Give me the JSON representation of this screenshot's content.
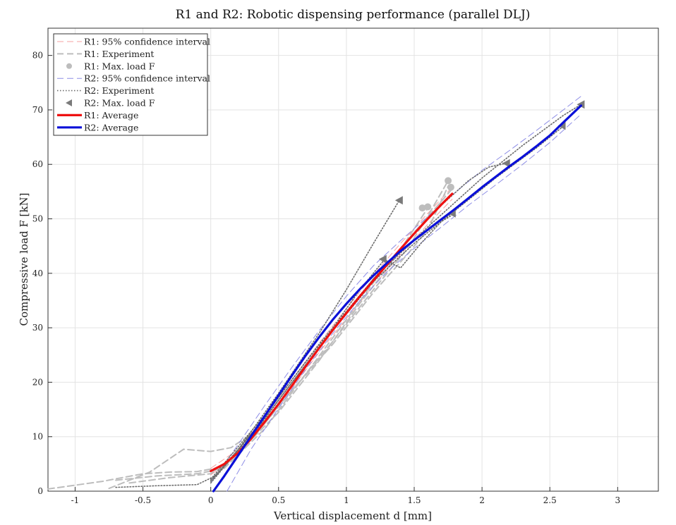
{
  "chart_data": {
    "type": "line",
    "title": "R1 and R2: Robotic dispensing performance (parallel DLJ)",
    "xlabel": "Vertical displacement d [mm]",
    "ylabel": "Compressive load F [kN]",
    "xlim": [
      -1.2,
      3.3
    ],
    "ylim": [
      0,
      85
    ],
    "xticks": [
      -1,
      -0.5,
      0,
      0.5,
      1,
      1.5,
      2,
      2.5,
      3
    ],
    "xtick_labels": [
      "-1",
      "-0.5",
      "0",
      "0.5",
      "1",
      "1.5",
      "2",
      "2.5",
      "3"
    ],
    "yticks": [
      0,
      10,
      20,
      30,
      40,
      50,
      60,
      70,
      80
    ],
    "ytick_labels": [
      "0",
      "10",
      "20",
      "30",
      "40",
      "50",
      "60",
      "70",
      "80"
    ],
    "grid": true,
    "legend_position": "top-left",
    "colors": {
      "r1_avg": "#ee1111",
      "r2_avg": "#0b10d8",
      "r1_ci": "#f4a0a0",
      "r2_ci": "#8e8ee6",
      "experiment": "#bdbdbd",
      "r2_experiment": "#6b6b6b",
      "r2_marker": "#7a7a7a"
    },
    "series": [
      {
        "key": "r1_ci",
        "name": "R1: 95% confidence interval",
        "style": "dashed",
        "lines": [
          [
            [
              0,
              4.2
            ],
            [
              0.2,
              7.6
            ],
            [
              0.4,
              13.8
            ],
            [
              0.6,
              20.5
            ],
            [
              0.8,
              27.2
            ],
            [
              1.0,
              33.5
            ],
            [
              1.2,
              39.7
            ],
            [
              1.4,
              45.5
            ],
            [
              1.6,
              51.0
            ],
            [
              1.78,
              55.8
            ]
          ],
          [
            [
              0,
              3.0
            ],
            [
              0.2,
              6.5
            ],
            [
              0.4,
              12.4
            ],
            [
              0.6,
              18.9
            ],
            [
              0.8,
              25.5
            ],
            [
              1.0,
              31.7
            ],
            [
              1.2,
              37.7
            ],
            [
              1.4,
              43.5
            ],
            [
              1.6,
              49.0
            ],
            [
              1.78,
              53.6
            ]
          ]
        ]
      },
      {
        "key": "experiment",
        "name": "R1: Experiment",
        "style": "dashed",
        "lines": [
          [
            [
              -1.2,
              0.4
            ],
            [
              -0.8,
              1.8
            ],
            [
              -0.5,
              3.2
            ],
            [
              -0.3,
              3.5
            ],
            [
              -0.1,
              3.6
            ],
            [
              0.1,
              4.5
            ],
            [
              0.3,
              9.5
            ],
            [
              0.6,
              18.5
            ],
            [
              0.9,
              27.5
            ],
            [
              1.2,
              37.0
            ],
            [
              1.45,
              44.5
            ],
            [
              1.6,
              50.5
            ],
            [
              1.75,
              57.0
            ]
          ],
          [
            [
              -0.75,
              0.5
            ],
            [
              -0.45,
              3.5
            ],
            [
              -0.2,
              7.7
            ],
            [
              0.0,
              7.3
            ],
            [
              0.15,
              8.0
            ],
            [
              0.3,
              10.5
            ],
            [
              0.6,
              18.5
            ],
            [
              0.9,
              27.0
            ],
            [
              1.2,
              36.5
            ],
            [
              1.45,
              43.5
            ],
            [
              1.6,
              48.0
            ],
            [
              1.75,
              56.0
            ]
          ],
          [
            [
              -0.6,
              1.5
            ],
            [
              -0.3,
              2.5
            ],
            [
              0.0,
              3.2
            ],
            [
              0.2,
              7.0
            ],
            [
              0.5,
              14.5
            ],
            [
              0.8,
              24.0
            ],
            [
              1.1,
              34.5
            ],
            [
              1.35,
              42.5
            ],
            [
              1.6,
              52.0
            ]
          ],
          [
            [
              -0.7,
              2.0
            ],
            [
              -0.4,
              2.8
            ],
            [
              -0.1,
              3.2
            ],
            [
              0.1,
              4.2
            ],
            [
              0.4,
              11.5
            ],
            [
              0.7,
              21.5
            ],
            [
              1.0,
              31.5
            ],
            [
              1.25,
              40.0
            ],
            [
              1.5,
              47.5
            ],
            [
              1.78,
              55.5
            ]
          ]
        ]
      },
      {
        "key": "r1_max",
        "name": "R1: Max. load F",
        "style": "marker-circle",
        "points": [
          [
            1.56,
            52.0
          ],
          [
            1.6,
            52.2
          ],
          [
            1.75,
            57.0
          ],
          [
            1.77,
            55.8
          ]
        ]
      },
      {
        "key": "r2_ci",
        "name": "R2: 95% confidence interval",
        "style": "dashed",
        "lines": [
          [
            [
              0.0,
              1.5
            ],
            [
              0.2,
              8.5
            ],
            [
              0.4,
              15.8
            ],
            [
              0.6,
              22.8
            ],
            [
              0.8,
              29.5
            ],
            [
              1.0,
              35.8
            ],
            [
              1.2,
              41.4
            ],
            [
              1.4,
              46.0
            ],
            [
              1.6,
              50.4
            ],
            [
              1.8,
              54.8
            ],
            [
              2.0,
              58.9
            ],
            [
              2.2,
              62.5
            ],
            [
              2.4,
              66.2
            ],
            [
              2.6,
              70.0
            ],
            [
              2.73,
              72.5
            ]
          ],
          [
            [
              0.12,
              0.0
            ],
            [
              0.3,
              7.8
            ],
            [
              0.5,
              15.2
            ],
            [
              0.7,
              22.4
            ],
            [
              0.9,
              29.0
            ],
            [
              1.1,
              35.0
            ],
            [
              1.3,
              40.3
            ],
            [
              1.5,
              44.6
            ],
            [
              1.7,
              48.5
            ],
            [
              1.9,
              52.5
            ],
            [
              2.1,
              56.2
            ],
            [
              2.3,
              60.0
            ],
            [
              2.5,
              64.0
            ],
            [
              2.73,
              69.2
            ]
          ]
        ]
      },
      {
        "key": "r2_experiment",
        "name": "R2: Experiment",
        "style": "dotted",
        "lines": [
          [
            [
              -0.7,
              0.7
            ],
            [
              -0.4,
              1.0
            ],
            [
              -0.1,
              1.2
            ],
            [
              0.05,
              3.0
            ],
            [
              0.2,
              7.5
            ],
            [
              0.5,
              18.0
            ],
            [
              0.8,
              29.0
            ],
            [
              1.0,
              37.0
            ],
            [
              1.2,
              45.5
            ],
            [
              1.39,
              53.4
            ]
          ],
          [
            [
              0.0,
              1.5
            ],
            [
              0.3,
              10.5
            ],
            [
              0.6,
              20.5
            ],
            [
              0.9,
              30.0
            ],
            [
              1.1,
              37.0
            ],
            [
              1.28,
              42.5
            ],
            [
              1.4,
              41.0
            ],
            [
              1.55,
              45.5
            ],
            [
              1.7,
              49.5
            ],
            [
              1.8,
              51.0
            ]
          ],
          [
            [
              0.0,
              2.0
            ],
            [
              0.3,
              10.0
            ],
            [
              0.6,
              20.0
            ],
            [
              0.9,
              29.5
            ],
            [
              1.2,
              39.0
            ],
            [
              1.45,
              46.0
            ],
            [
              1.7,
              52.5
            ],
            [
              1.9,
              57.0
            ],
            [
              2.05,
              59.5
            ],
            [
              2.18,
              60.2
            ]
          ],
          [
            [
              0.0,
              1.8
            ],
            [
              0.4,
              13.5
            ],
            [
              0.8,
              26.5
            ],
            [
              1.2,
              38.5
            ],
            [
              1.5,
              45.5
            ],
            [
              1.8,
              51.5
            ],
            [
              2.1,
              57.5
            ],
            [
              2.4,
              63.0
            ],
            [
              2.6,
              67.0
            ]
          ],
          [
            [
              0.0,
              2.2
            ],
            [
              0.4,
              14.0
            ],
            [
              0.8,
              27.0
            ],
            [
              1.2,
              39.0
            ],
            [
              1.6,
              48.5
            ],
            [
              2.0,
              57.5
            ],
            [
              2.3,
              63.5
            ],
            [
              2.6,
              69.0
            ],
            [
              2.73,
              71.0
            ]
          ]
        ]
      },
      {
        "key": "r2_max",
        "name": "R2: Max. load F",
        "style": "marker-triangle-left",
        "points": [
          [
            1.39,
            53.4
          ],
          [
            1.27,
            42.6
          ],
          [
            1.78,
            51.0
          ],
          [
            2.18,
            60.2
          ],
          [
            2.59,
            67.1
          ],
          [
            2.73,
            71.0
          ]
        ]
      },
      {
        "key": "r1_avg",
        "name": "R1: Average",
        "style": "solid",
        "lines": [
          [
            [
              0.0,
              3.7
            ],
            [
              0.1,
              5.0
            ],
            [
              0.2,
              7.0
            ],
            [
              0.3,
              9.7
            ],
            [
              0.4,
              12.8
            ],
            [
              0.5,
              16.0
            ],
            [
              0.6,
              19.4
            ],
            [
              0.7,
              22.9
            ],
            [
              0.8,
              26.3
            ],
            [
              0.9,
              29.6
            ],
            [
              1.0,
              32.7
            ],
            [
              1.1,
              35.8
            ],
            [
              1.2,
              38.7
            ],
            [
              1.3,
              41.6
            ],
            [
              1.4,
              44.5
            ],
            [
              1.5,
              47.3
            ],
            [
              1.6,
              50.0
            ],
            [
              1.7,
              52.6
            ],
            [
              1.78,
              54.6
            ]
          ]
        ]
      },
      {
        "key": "r2_avg",
        "name": "R2: Average",
        "style": "solid",
        "lines": [
          [
            [
              0.02,
              0.0
            ],
            [
              0.1,
              2.8
            ],
            [
              0.2,
              6.5
            ],
            [
              0.3,
              10.2
            ],
            [
              0.4,
              13.9
            ],
            [
              0.5,
              17.6
            ],
            [
              0.6,
              21.3
            ],
            [
              0.7,
              24.9
            ],
            [
              0.8,
              28.3
            ],
            [
              0.9,
              31.5
            ],
            [
              1.0,
              34.4
            ],
            [
              1.1,
              37.1
            ],
            [
              1.2,
              39.6
            ],
            [
              1.3,
              41.9
            ],
            [
              1.4,
              44.1
            ],
            [
              1.5,
              46.1
            ],
            [
              1.6,
              48.0
            ],
            [
              1.7,
              49.9
            ],
            [
              1.8,
              51.8
            ],
            [
              1.9,
              53.8
            ],
            [
              2.0,
              55.8
            ],
            [
              2.1,
              57.7
            ],
            [
              2.2,
              59.6
            ],
            [
              2.3,
              61.4
            ],
            [
              2.4,
              63.3
            ],
            [
              2.5,
              65.3
            ],
            [
              2.6,
              67.7
            ],
            [
              2.73,
              70.8
            ]
          ]
        ]
      }
    ],
    "legend": [
      {
        "key": "r1_ci",
        "text": "R1: 95% confidence interval"
      },
      {
        "key": "experiment",
        "text": "R1: Experiment"
      },
      {
        "key": "r1_max",
        "text": "R1: Max. load F"
      },
      {
        "key": "r2_ci",
        "text": "R2: 95% confidence interval"
      },
      {
        "key": "r2_experiment",
        "text": "R2: Experiment"
      },
      {
        "key": "r2_max",
        "text": "R2: Max. load F"
      },
      {
        "key": "r1_avg",
        "text": "R1: Average"
      },
      {
        "key": "r2_avg",
        "text": "R2: Average"
      }
    ]
  }
}
